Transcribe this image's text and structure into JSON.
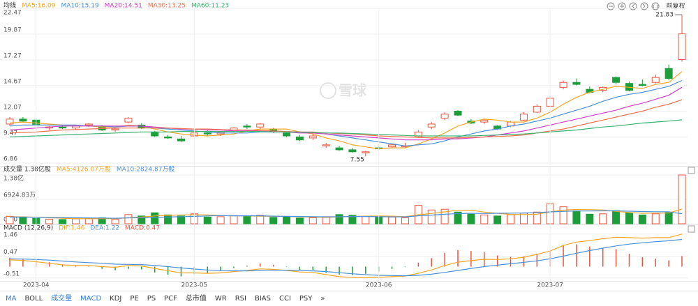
{
  "watermark": "雪球",
  "toolbar_label": "前复权",
  "tabs": [
    {
      "label": "MA",
      "active": true
    },
    {
      "label": "BOLL",
      "active": false
    },
    {
      "label": "成交量",
      "active": true
    },
    {
      "label": "MACD",
      "active": true
    },
    {
      "label": "KDJ",
      "active": false
    },
    {
      "label": "PE",
      "active": false
    },
    {
      "label": "PS",
      "active": false
    },
    {
      "label": "PCF",
      "active": false
    },
    {
      "label": "总市值",
      "active": false
    },
    {
      "label": "WR",
      "active": false
    },
    {
      "label": "RSI",
      "active": false
    },
    {
      "label": "BIAS",
      "active": false
    },
    {
      "label": "CCI",
      "active": false
    },
    {
      "label": "PSY",
      "active": false
    },
    {
      "label": "»",
      "active": false
    }
  ],
  "chart_data": [
    {
      "type": "candlestick",
      "legend_title": "均线",
      "up_color": "#e8543f",
      "down_color": "#1d9e3b",
      "grid": true,
      "ylim": [
        6.86,
        22.47
      ],
      "yticks": [
        22.47,
        19.87,
        17.27,
        14.67,
        12.07,
        9.47,
        6.86
      ],
      "annotations": [
        "21.83",
        "7.55"
      ],
      "ohlc": [
        [
          10.8,
          11.5,
          10.6,
          11.3
        ],
        [
          11.3,
          11.5,
          11.0,
          11.1
        ],
        [
          11.2,
          11.4,
          10.6,
          10.7
        ],
        [
          10.4,
          10.6,
          10.2,
          10.5
        ],
        [
          10.5,
          10.7,
          10.3,
          10.4
        ],
        [
          10.4,
          10.7,
          10.2,
          10.6
        ],
        [
          10.7,
          10.9,
          10.5,
          10.8
        ],
        [
          10.6,
          10.7,
          10.1,
          10.2
        ],
        [
          10.2,
          10.4,
          10.0,
          10.3
        ],
        [
          11.0,
          11.5,
          10.9,
          11.4
        ],
        [
          10.7,
          10.9,
          10.3,
          10.4
        ],
        [
          10.0,
          10.1,
          9.5,
          9.6
        ],
        [
          9.5,
          9.7,
          9.3,
          9.4
        ],
        [
          9.3,
          9.6,
          9.0,
          9.1
        ],
        [
          9.6,
          10.1,
          9.5,
          9.9
        ],
        [
          9.9,
          10.2,
          9.6,
          9.8
        ],
        [
          9.8,
          10.1,
          9.6,
          10.0
        ],
        [
          10.1,
          10.5,
          10.0,
          10.4
        ],
        [
          10.6,
          10.8,
          10.3,
          10.5
        ],
        [
          10.5,
          10.9,
          10.3,
          10.8
        ],
        [
          10.3,
          10.4,
          9.9,
          10.0
        ],
        [
          9.9,
          10.0,
          9.5,
          9.6
        ],
        [
          9.5,
          9.7,
          9.1,
          9.2
        ],
        [
          9.4,
          9.8,
          9.2,
          9.6
        ],
        [
          8.6,
          8.9,
          8.4,
          8.7
        ],
        [
          8.4,
          8.6,
          8.1,
          8.2
        ],
        [
          8.2,
          8.4,
          7.9,
          8.0
        ],
        [
          7.9,
          8.1,
          7.55,
          8.0
        ],
        [
          8.4,
          8.6,
          8.2,
          8.3
        ],
        [
          8.5,
          8.8,
          8.4,
          8.7
        ],
        [
          8.5,
          8.9,
          8.4,
          8.6
        ],
        [
          9.5,
          10.2,
          9.4,
          10.0
        ],
        [
          10.5,
          11.0,
          10.3,
          10.8
        ],
        [
          11.4,
          12.0,
          11.2,
          11.8
        ],
        [
          12.1,
          12.2,
          11.6,
          11.7
        ],
        [
          11.1,
          11.3,
          10.8,
          10.9
        ],
        [
          11.0,
          11.3,
          10.8,
          11.2
        ],
        [
          10.6,
          10.7,
          10.2,
          10.3
        ],
        [
          10.6,
          11.1,
          10.5,
          11.0
        ],
        [
          11.2,
          12.0,
          11.1,
          11.8
        ],
        [
          12.0,
          12.8,
          11.9,
          12.6
        ],
        [
          12.6,
          13.6,
          12.5,
          13.4
        ],
        [
          14.5,
          15.2,
          14.3,
          15.0
        ],
        [
          15.0,
          15.4,
          14.7,
          14.8
        ],
        [
          14.3,
          14.6,
          13.9,
          14.0
        ],
        [
          14.2,
          14.6,
          14.0,
          14.5
        ],
        [
          15.5,
          15.6,
          14.8,
          15.0
        ],
        [
          14.9,
          15.1,
          14.1,
          14.2
        ],
        [
          14.8,
          15.3,
          14.6,
          14.7
        ],
        [
          15.0,
          15.8,
          14.9,
          15.5
        ],
        [
          16.4,
          16.8,
          15.2,
          15.4
        ],
        [
          17.3,
          21.83,
          17.1,
          19.9
        ]
      ],
      "series": [
        {
          "name": "MA5:16.09",
          "color": "#f5a623",
          "values": [
            10.9,
            11.0,
            10.9,
            10.8,
            10.7,
            10.6,
            10.6,
            10.5,
            10.5,
            10.7,
            10.6,
            10.3,
            10.0,
            9.8,
            9.7,
            9.6,
            9.7,
            9.8,
            10.1,
            10.3,
            10.3,
            10.3,
            10.0,
            9.8,
            9.4,
            9.1,
            8.7,
            8.5,
            8.3,
            8.4,
            8.4,
            8.8,
            9.3,
            9.9,
            10.6,
            11.0,
            11.3,
            11.2,
            11.0,
            11.0,
            11.4,
            12.0,
            12.8,
            13.5,
            14.0,
            14.3,
            14.6,
            14.5,
            14.4,
            14.8,
            15.0,
            16.09
          ]
        },
        {
          "name": "MA10:15.19",
          "color": "#4a90d9",
          "values": [
            10.6,
            10.7,
            10.7,
            10.7,
            10.7,
            10.7,
            10.6,
            10.6,
            10.5,
            10.6,
            10.6,
            10.4,
            10.3,
            10.2,
            10.1,
            10.0,
            9.9,
            9.9,
            9.9,
            10.0,
            10.0,
            10.0,
            10.0,
            9.9,
            9.8,
            9.6,
            9.4,
            9.2,
            9.0,
            8.8,
            8.6,
            8.7,
            8.8,
            9.1,
            9.5,
            9.8,
            10.1,
            10.3,
            10.6,
            10.8,
            11.1,
            11.4,
            11.8,
            12.2,
            12.6,
            13.1,
            13.5,
            13.8,
            14.0,
            14.3,
            14.6,
            15.19
          ]
        },
        {
          "name": "MA20:14.51",
          "color": "#d23ec8",
          "values": [
            10.2,
            10.3,
            10.4,
            10.5,
            10.6,
            10.6,
            10.6,
            10.6,
            10.6,
            10.6,
            10.6,
            10.5,
            10.4,
            10.3,
            10.3,
            10.2,
            10.2,
            10.1,
            10.1,
            10.1,
            10.0,
            10.0,
            9.9,
            9.9,
            9.8,
            9.7,
            9.6,
            9.5,
            9.4,
            9.3,
            9.2,
            9.2,
            9.2,
            9.3,
            9.3,
            9.4,
            9.5,
            9.7,
            9.9,
            10.1,
            10.4,
            10.7,
            11.0,
            11.3,
            11.6,
            11.9,
            12.2,
            12.6,
            12.9,
            13.3,
            13.7,
            14.51
          ]
        },
        {
          "name": "MA30:13.25",
          "color": "#f0724e",
          "values": [
            9.9,
            9.95,
            10.0,
            10.1,
            10.2,
            10.25,
            10.3,
            10.35,
            10.4,
            10.4,
            10.4,
            10.4,
            10.4,
            10.35,
            10.3,
            10.3,
            10.25,
            10.2,
            10.2,
            10.15,
            10.1,
            10.05,
            10.0,
            10.0,
            9.9,
            9.85,
            9.8,
            9.7,
            9.6,
            9.55,
            9.5,
            9.45,
            9.4,
            9.4,
            9.4,
            9.45,
            9.5,
            9.55,
            9.6,
            9.7,
            9.9,
            10.1,
            10.3,
            10.6,
            10.9,
            11.2,
            11.5,
            11.8,
            12.1,
            12.5,
            12.8,
            13.25
          ]
        },
        {
          "name": "MA60:11.23",
          "color": "#3cb371",
          "values": [
            9.5,
            9.55,
            9.6,
            9.65,
            9.7,
            9.75,
            9.8,
            9.85,
            9.9,
            9.95,
            10.0,
            10.0,
            10.0,
            10.05,
            10.05,
            10.05,
            10.05,
            10.05,
            10.05,
            10.05,
            10.0,
            10.0,
            10.0,
            9.95,
            9.9,
            9.9,
            9.85,
            9.8,
            9.75,
            9.7,
            9.65,
            9.6,
            9.6,
            9.6,
            9.6,
            9.6,
            9.65,
            9.7,
            9.75,
            9.8,
            9.9,
            10.0,
            10.1,
            10.2,
            10.35,
            10.5,
            10.6,
            10.75,
            10.9,
            11.0,
            11.1,
            11.23
          ]
        }
      ]
    },
    {
      "type": "bar",
      "legend_title": "成交量 1.38亿股",
      "grid": true,
      "ylim": [
        0,
        14000
      ],
      "yticks": [
        {
          "value": 13800,
          "label": "1.38亿"
        },
        {
          "value": 6924.83,
          "label": "6924.83万"
        },
        {
          "value": 0,
          "label": "0.00"
        }
      ],
      "values": [
        2100,
        1800,
        1500,
        1300,
        1200,
        1400,
        1600,
        1700,
        1300,
        2600,
        2200,
        3100,
        2500,
        2200,
        2800,
        1900,
        2000,
        2300,
        2100,
        2400,
        1800,
        1900,
        1600,
        1700,
        2000,
        2600,
        2400,
        2100,
        1800,
        1900,
        1700,
        5200,
        3900,
        4100,
        3300,
        2700,
        2500,
        2200,
        2600,
        3000,
        3300,
        5600,
        4800,
        3600,
        2700,
        2800,
        3700,
        3100,
        2500,
        2800,
        3200,
        13800
      ],
      "series": [
        {
          "name": "MA5:4126.07万股",
          "color": "#f5a623",
          "values": [
            2000,
            1950,
            1850,
            1700,
            1550,
            1450,
            1400,
            1450,
            1450,
            1700,
            1900,
            2200,
            2350,
            2500,
            2550,
            2500,
            2300,
            2250,
            2200,
            2150,
            2100,
            2100,
            1950,
            1900,
            1800,
            1950,
            2050,
            2150,
            2200,
            2150,
            2000,
            2550,
            2900,
            3350,
            3800,
            3850,
            3300,
            2950,
            2650,
            2600,
            2700,
            3350,
            3850,
            4050,
            4000,
            3900,
            3500,
            3200,
            2950,
            3000,
            3050,
            4126.07
          ]
        },
        {
          "name": "MA10:2824.87万股",
          "color": "#4a90d9",
          "values": [
            1900,
            1900,
            1850,
            1800,
            1750,
            1700,
            1650,
            1600,
            1550,
            1650,
            1700,
            1800,
            1900,
            2000,
            2100,
            2200,
            2300,
            2250,
            2250,
            2250,
            2150,
            2100,
            2050,
            2000,
            1950,
            2000,
            2050,
            2050,
            2000,
            1950,
            1950,
            2250,
            2450,
            2700,
            2850,
            2950,
            2900,
            2950,
            3000,
            3050,
            3150,
            3350,
            3500,
            3600,
            3600,
            3650,
            3650,
            3550,
            3450,
            3400,
            3400,
            2824.87
          ]
        }
      ]
    },
    {
      "type": "macd",
      "legend_title": "MACD (12,26,9)",
      "grid": true,
      "ylim": [
        -0.64,
        1.61
      ],
      "yticks": [
        1.46,
        0.47,
        -0.51
      ],
      "categories": [
        null,
        null,
        "2023-04",
        null,
        null,
        null,
        null,
        null,
        null,
        null,
        null,
        null,
        null,
        null,
        "2023-05",
        null,
        null,
        null,
        null,
        null,
        null,
        null,
        null,
        null,
        null,
        null,
        null,
        null,
        "2023-06",
        null,
        null,
        null,
        null,
        null,
        null,
        null,
        null,
        null,
        null,
        null,
        null,
        "2023-07",
        null,
        null,
        null,
        null,
        null,
        null,
        null,
        null,
        null,
        null
      ],
      "hist": {
        "name": "MACD:0.47",
        "values": [
          0.4,
          0.36,
          0.28,
          0.2,
          0.1,
          0.06,
          0.02,
          -0.1,
          -0.16,
          -0.1,
          -0.12,
          -0.26,
          -0.36,
          -0.44,
          -0.34,
          -0.3,
          -0.2,
          -0.06,
          0.04,
          0.14,
          0.08,
          -0.02,
          -0.14,
          -0.14,
          -0.28,
          -0.36,
          -0.38,
          -0.32,
          -0.22,
          -0.1,
          -0.02,
          0.18,
          0.38,
          0.62,
          0.74,
          0.7,
          0.66,
          0.5,
          0.44,
          0.46,
          0.58,
          0.7,
          0.96,
          1.0,
          0.9,
          0.84,
          0.78,
          0.58,
          0.42,
          0.36,
          0.28,
          0.47
        ]
      },
      "series": [
        {
          "name": "DIF:1.46",
          "color": "#f5a623",
          "values": [
            0.3,
            0.28,
            0.22,
            0.15,
            0.08,
            0.05,
            0.05,
            0.0,
            -0.03,
            0.05,
            0.03,
            -0.08,
            -0.18,
            -0.28,
            -0.28,
            -0.3,
            -0.28,
            -0.22,
            -0.17,
            -0.1,
            -0.12,
            -0.17,
            -0.24,
            -0.26,
            -0.36,
            -0.45,
            -0.49,
            -0.5,
            -0.48,
            -0.45,
            -0.42,
            -0.3,
            -0.15,
            0.05,
            0.2,
            0.27,
            0.33,
            0.32,
            0.35,
            0.42,
            0.55,
            0.7,
            0.95,
            1.1,
            1.17,
            1.25,
            1.32,
            1.3,
            1.28,
            1.3,
            1.3,
            1.46
          ]
        },
        {
          "name": "DEA:1.22",
          "color": "#4a90d9",
          "values": [
            0.35,
            0.34,
            0.32,
            0.29,
            0.25,
            0.21,
            0.18,
            0.15,
            0.11,
            0.1,
            0.09,
            0.05,
            0.0,
            -0.06,
            -0.11,
            -0.15,
            -0.18,
            -0.19,
            -0.19,
            -0.17,
            -0.16,
            -0.16,
            -0.17,
            -0.19,
            -0.22,
            -0.27,
            -0.32,
            -0.36,
            -0.39,
            -0.4,
            -0.41,
            -0.39,
            -0.34,
            -0.26,
            -0.17,
            -0.08,
            0.0,
            0.07,
            0.13,
            0.19,
            0.26,
            0.35,
            0.47,
            0.6,
            0.72,
            0.83,
            0.93,
            1.01,
            1.07,
            1.12,
            1.16,
            1.22
          ]
        }
      ]
    }
  ]
}
